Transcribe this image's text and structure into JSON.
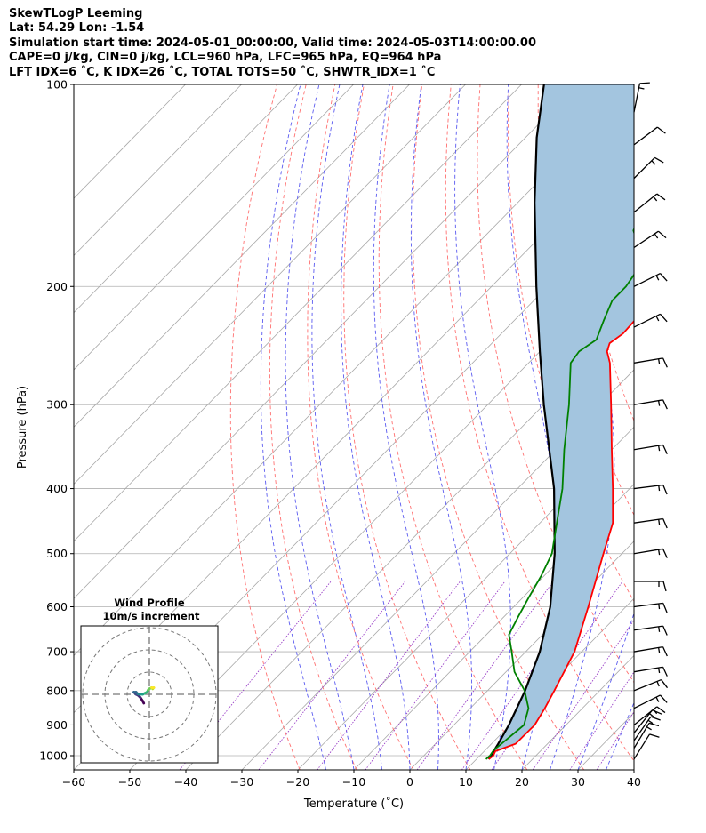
{
  "header": {
    "line1": "SkewTLogP Leeming",
    "line2": "Lat: 54.29   Lon: -1.54",
    "line3": "Simulation start time: 2024-05-01_00:00:00, Valid time: 2024-05-03T14:00:00.00",
    "line4": "CAPE=0 j/kg, CIN=0 j/kg, LCL=960 hPa, LFC=965 hPa, EQ=964 hPa",
    "line5": "LFT IDX=6 ˚C, K IDX=26 ˚C, TOTAL TOTS=50 ˚C, SHWTR_IDX=1 ˚C"
  },
  "chart_data": {
    "type": "line",
    "xlabel": "Temperature (˚C)",
    "ylabel": "Pressure (hPa)",
    "xlim": [
      -60,
      40
    ],
    "ylim": [
      1050,
      100
    ],
    "yscale": "log",
    "skew": true,
    "grid": true,
    "x_ticks": [
      -60,
      -50,
      -40,
      -30,
      -20,
      -10,
      0,
      10,
      20,
      30,
      40
    ],
    "x_tick_labels": [
      "−60",
      "−50",
      "−40",
      "−30",
      "−20",
      "−10",
      "0",
      "10",
      "20",
      "30",
      "40"
    ],
    "y_ticks": [
      1000,
      900,
      800,
      700,
      600,
      500,
      400,
      300,
      200,
      100
    ],
    "y_tick_labels": [
      "1000",
      "900",
      "800",
      "700",
      "600",
      "500",
      "400",
      "300",
      "200",
      "100"
    ],
    "series": [
      {
        "role": "temperature",
        "color": "#ff0000",
        "points": [
          [
            1012,
            12.2
          ],
          [
            1000,
            12.4
          ],
          [
            985,
            12.0
          ],
          [
            960,
            14.3
          ],
          [
            900,
            14.4
          ],
          [
            850,
            13.3
          ],
          [
            800,
            11.9
          ],
          [
            700,
            8.7
          ],
          [
            600,
            3.3
          ],
          [
            500,
            -3.3
          ],
          [
            450,
            -7.0
          ],
          [
            400,
            -13.0
          ],
          [
            350,
            -20.0
          ],
          [
            300,
            -28.0
          ],
          [
            260,
            -35.5
          ],
          [
            250,
            -38.0
          ],
          [
            243,
            -39.0
          ],
          [
            235,
            -38.3
          ],
          [
            225,
            -38.5
          ],
          [
            215,
            -40.0
          ],
          [
            205,
            -40.9
          ],
          [
            195,
            -42.0
          ],
          [
            185,
            -42.0
          ],
          [
            175,
            -43.0
          ],
          [
            165,
            -43.0
          ],
          [
            155,
            -44.0
          ],
          [
            145,
            -44.0
          ],
          [
            140,
            -45.8
          ],
          [
            125,
            -51.0
          ],
          [
            115,
            -57.0
          ],
          [
            110,
            -59.0
          ],
          [
            100,
            -63.0
          ]
        ]
      },
      {
        "role": "dewpoint",
        "color": "#008000",
        "points": [
          [
            1012,
            11.7
          ],
          [
            1000,
            11.8
          ],
          [
            980,
            11.5
          ],
          [
            960,
            11.8
          ],
          [
            900,
            12.5
          ],
          [
            850,
            10.4
          ],
          [
            800,
            6.6
          ],
          [
            750,
            1.5
          ],
          [
            700,
            -2.5
          ],
          [
            660,
            -6.0
          ],
          [
            620,
            -7.5
          ],
          [
            580,
            -9.0
          ],
          [
            540,
            -10.5
          ],
          [
            500,
            -12.5
          ],
          [
            450,
            -17.0
          ],
          [
            400,
            -22.0
          ],
          [
            350,
            -28.5
          ],
          [
            300,
            -35.5
          ],
          [
            260,
            -42.5
          ],
          [
            250,
            -43.0
          ],
          [
            240,
            -42.0
          ],
          [
            225,
            -44.0
          ],
          [
            210,
            -46.0
          ],
          [
            200,
            -46.0
          ],
          [
            185,
            -47.2
          ],
          [
            175,
            -50.5
          ],
          [
            165,
            -54.5
          ],
          [
            150,
            -57.0
          ],
          [
            135,
            -58.5
          ],
          [
            120,
            -59.5
          ],
          [
            100,
            -60.0
          ]
        ]
      },
      {
        "role": "parcel",
        "color": "#000000",
        "points": [
          [
            1012,
            12.2
          ],
          [
            960,
            11.2
          ],
          [
            900,
            9.8
          ],
          [
            800,
            6.7
          ],
          [
            700,
            2.5
          ],
          [
            600,
            -3.5
          ],
          [
            500,
            -12.0
          ],
          [
            400,
            -23.5
          ],
          [
            300,
            -40.0
          ],
          [
            250,
            -50.0
          ],
          [
            200,
            -62.0
          ],
          [
            150,
            -77.0
          ],
          [
            120,
            -88.0
          ],
          [
            100,
            -96.0
          ]
        ]
      }
    ],
    "dry_adiabats_theta_K": [
      250,
      260,
      270,
      280,
      290,
      300,
      310,
      320,
      330,
      340,
      350,
      360,
      370,
      380,
      390,
      400,
      410,
      420,
      430,
      440,
      450
    ],
    "moist_adiabats_start_C": [
      -15,
      -10,
      -5,
      0,
      5,
      10,
      15,
      20,
      25,
      30,
      35
    ],
    "mixing_ratio_lines_gkg": [
      0.1,
      0.4,
      1,
      2,
      4,
      7,
      10,
      16,
      24,
      32
    ],
    "wind_barbs": [
      {
        "p": 1012,
        "u": 2.5,
        "v": 4
      },
      {
        "p": 975,
        "u": 3,
        "v": 5
      },
      {
        "p": 950,
        "u": 3.5,
        "v": 5
      },
      {
        "p": 925,
        "u": 4,
        "v": 5
      },
      {
        "p": 900,
        "u": 5,
        "v": 4
      },
      {
        "p": 850,
        "u": 6,
        "v": 3
      },
      {
        "p": 800,
        "u": 5,
        "v": 2
      },
      {
        "p": 750,
        "u": 6,
        "v": 1
      },
      {
        "p": 700,
        "u": 6,
        "v": 1
      },
      {
        "p": 650,
        "u": 7,
        "v": 1
      },
      {
        "p": 600,
        "u": 8,
        "v": 1
      },
      {
        "p": 550,
        "u": 6,
        "v": 0
      },
      {
        "p": 500,
        "u": 6,
        "v": 1
      },
      {
        "p": 450,
        "u": 7,
        "v": 1
      },
      {
        "p": 400,
        "u": 8,
        "v": 1
      },
      {
        "p": 350,
        "u": 6,
        "v": 1
      },
      {
        "p": 300,
        "u": 6,
        "v": 1
      },
      {
        "p": 260,
        "u": 6,
        "v": 1
      },
      {
        "p": 230,
        "u": 6,
        "v": 3
      },
      {
        "p": 200,
        "u": 6,
        "v": 3
      },
      {
        "p": 175,
        "u": 6,
        "v": 4
      },
      {
        "p": 155,
        "u": 5,
        "v": 4
      },
      {
        "p": 138,
        "u": 4,
        "v": 4
      },
      {
        "p": 123,
        "u": 4,
        "v": 3
      },
      {
        "p": 110,
        "u": 1,
        "v": 5
      }
    ],
    "hodograph": {
      "title": "Wind Profile",
      "subtitle": "10m/s increment",
      "points": [
        [
          -2.5,
          -4
        ],
        [
          -3,
          -3
        ],
        [
          -4,
          -1.5
        ],
        [
          -5,
          -0.5
        ],
        [
          -6,
          0
        ],
        [
          -6.5,
          0.5
        ],
        [
          -7,
          1
        ],
        [
          -6,
          1
        ],
        [
          -5,
          0
        ],
        [
          -4,
          0
        ],
        [
          -3,
          0
        ],
        [
          -2,
          0.5
        ],
        [
          -1,
          1
        ],
        [
          -0.5,
          2
        ],
        [
          0,
          2.5
        ],
        [
          1,
          3
        ],
        [
          1.5,
          2.5
        ],
        [
          2,
          3
        ],
        [
          1,
          3
        ]
      ]
    },
    "colors": {
      "cape_fill": "#a3c5df",
      "temperature": "#ff0000",
      "dewpoint": "#008000",
      "parcel": "#000000",
      "dry_adiabat": "#ff7070",
      "moist_adiabat": "#5a5af0",
      "mixing_ratio": "#9a40c8",
      "isotherm": "#a8a8a8"
    }
  }
}
